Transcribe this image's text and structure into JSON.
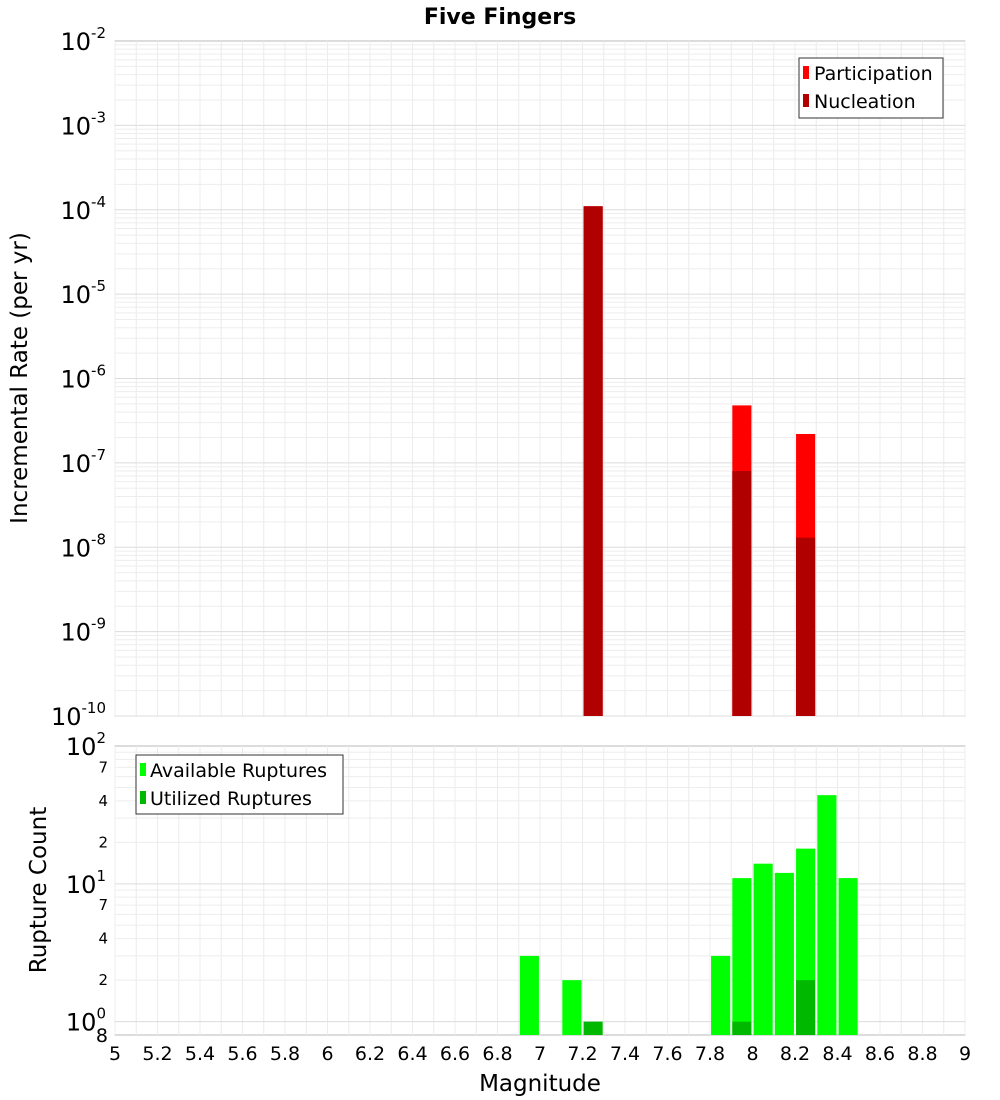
{
  "chart_data": [
    {
      "type": "bar",
      "title": "Five Fingers",
      "xlabel": "",
      "ylabel": "Incremental Rate (per yr)",
      "xlim": [
        5,
        9
      ],
      "ylim": [
        1e-10,
        0.01
      ],
      "yscale": "log",
      "grid": true,
      "legend_position": "top-right",
      "bar_width": 0.09,
      "y_ticks": [
        {
          "base": "10",
          "exp": "-2"
        },
        {
          "base": "10",
          "exp": "-3"
        },
        {
          "base": "10",
          "exp": "-4"
        },
        {
          "base": "10",
          "exp": "-5"
        },
        {
          "base": "10",
          "exp": "-6"
        },
        {
          "base": "10",
          "exp": "-7"
        },
        {
          "base": "10",
          "exp": "-8"
        },
        {
          "base": "10",
          "exp": "-9"
        },
        {
          "base": "10",
          "exp": "-10"
        }
      ],
      "series": [
        {
          "name": "Participation",
          "color": "#ff0000",
          "x": [
            7.25,
            7.95,
            8.25
          ],
          "values": [
            0.00011,
            4.8e-07,
            2.2e-07
          ]
        },
        {
          "name": "Nucleation",
          "color": "#b00000",
          "x": [
            7.25,
            7.95,
            8.25
          ],
          "values": [
            0.00011,
            8e-08,
            1.3e-08
          ]
        }
      ]
    },
    {
      "type": "bar",
      "xlabel": "Magnitude",
      "ylabel": "Rupture Count",
      "xlim": [
        5,
        9
      ],
      "ylim": [
        0.8,
        100
      ],
      "yscale": "log",
      "grid": true,
      "legend_position": "top-left",
      "bar_width": 0.09,
      "x_ticks": [
        "5",
        "5.2",
        "5.4",
        "5.6",
        "5.8",
        "6",
        "6.2",
        "6.4",
        "6.6",
        "6.8",
        "7",
        "7.2",
        "7.4",
        "7.6",
        "7.8",
        "8",
        "8.2",
        "8.4",
        "8.6",
        "8.8",
        "9"
      ],
      "y_major_ticks": [
        {
          "base": "10",
          "exp": "2"
        },
        {
          "base": "10",
          "exp": "1"
        },
        {
          "base": "10",
          "exp": "0"
        }
      ],
      "y_minor_ticks": [
        {
          "value": 70,
          "label": "7"
        },
        {
          "value": 40,
          "label": "4"
        },
        {
          "value": 20,
          "label": "2"
        },
        {
          "value": 7,
          "label": "7"
        },
        {
          "value": 4,
          "label": "4"
        },
        {
          "value": 2,
          "label": "2"
        }
      ],
      "y_bottom_label": "8",
      "series": [
        {
          "name": "Available Ruptures",
          "color": "#00ff00",
          "x": [
            6.95,
            7.15,
            7.85,
            7.95,
            8.05,
            8.15,
            8.25,
            8.35,
            8.45
          ],
          "values": [
            3,
            2,
            3,
            11,
            14,
            12,
            18,
            44,
            11
          ]
        },
        {
          "name": "Utilized Ruptures",
          "color": "#00b800",
          "x": [
            7.25,
            7.95,
            8.25
          ],
          "values": [
            1,
            1,
            2
          ]
        }
      ]
    }
  ]
}
